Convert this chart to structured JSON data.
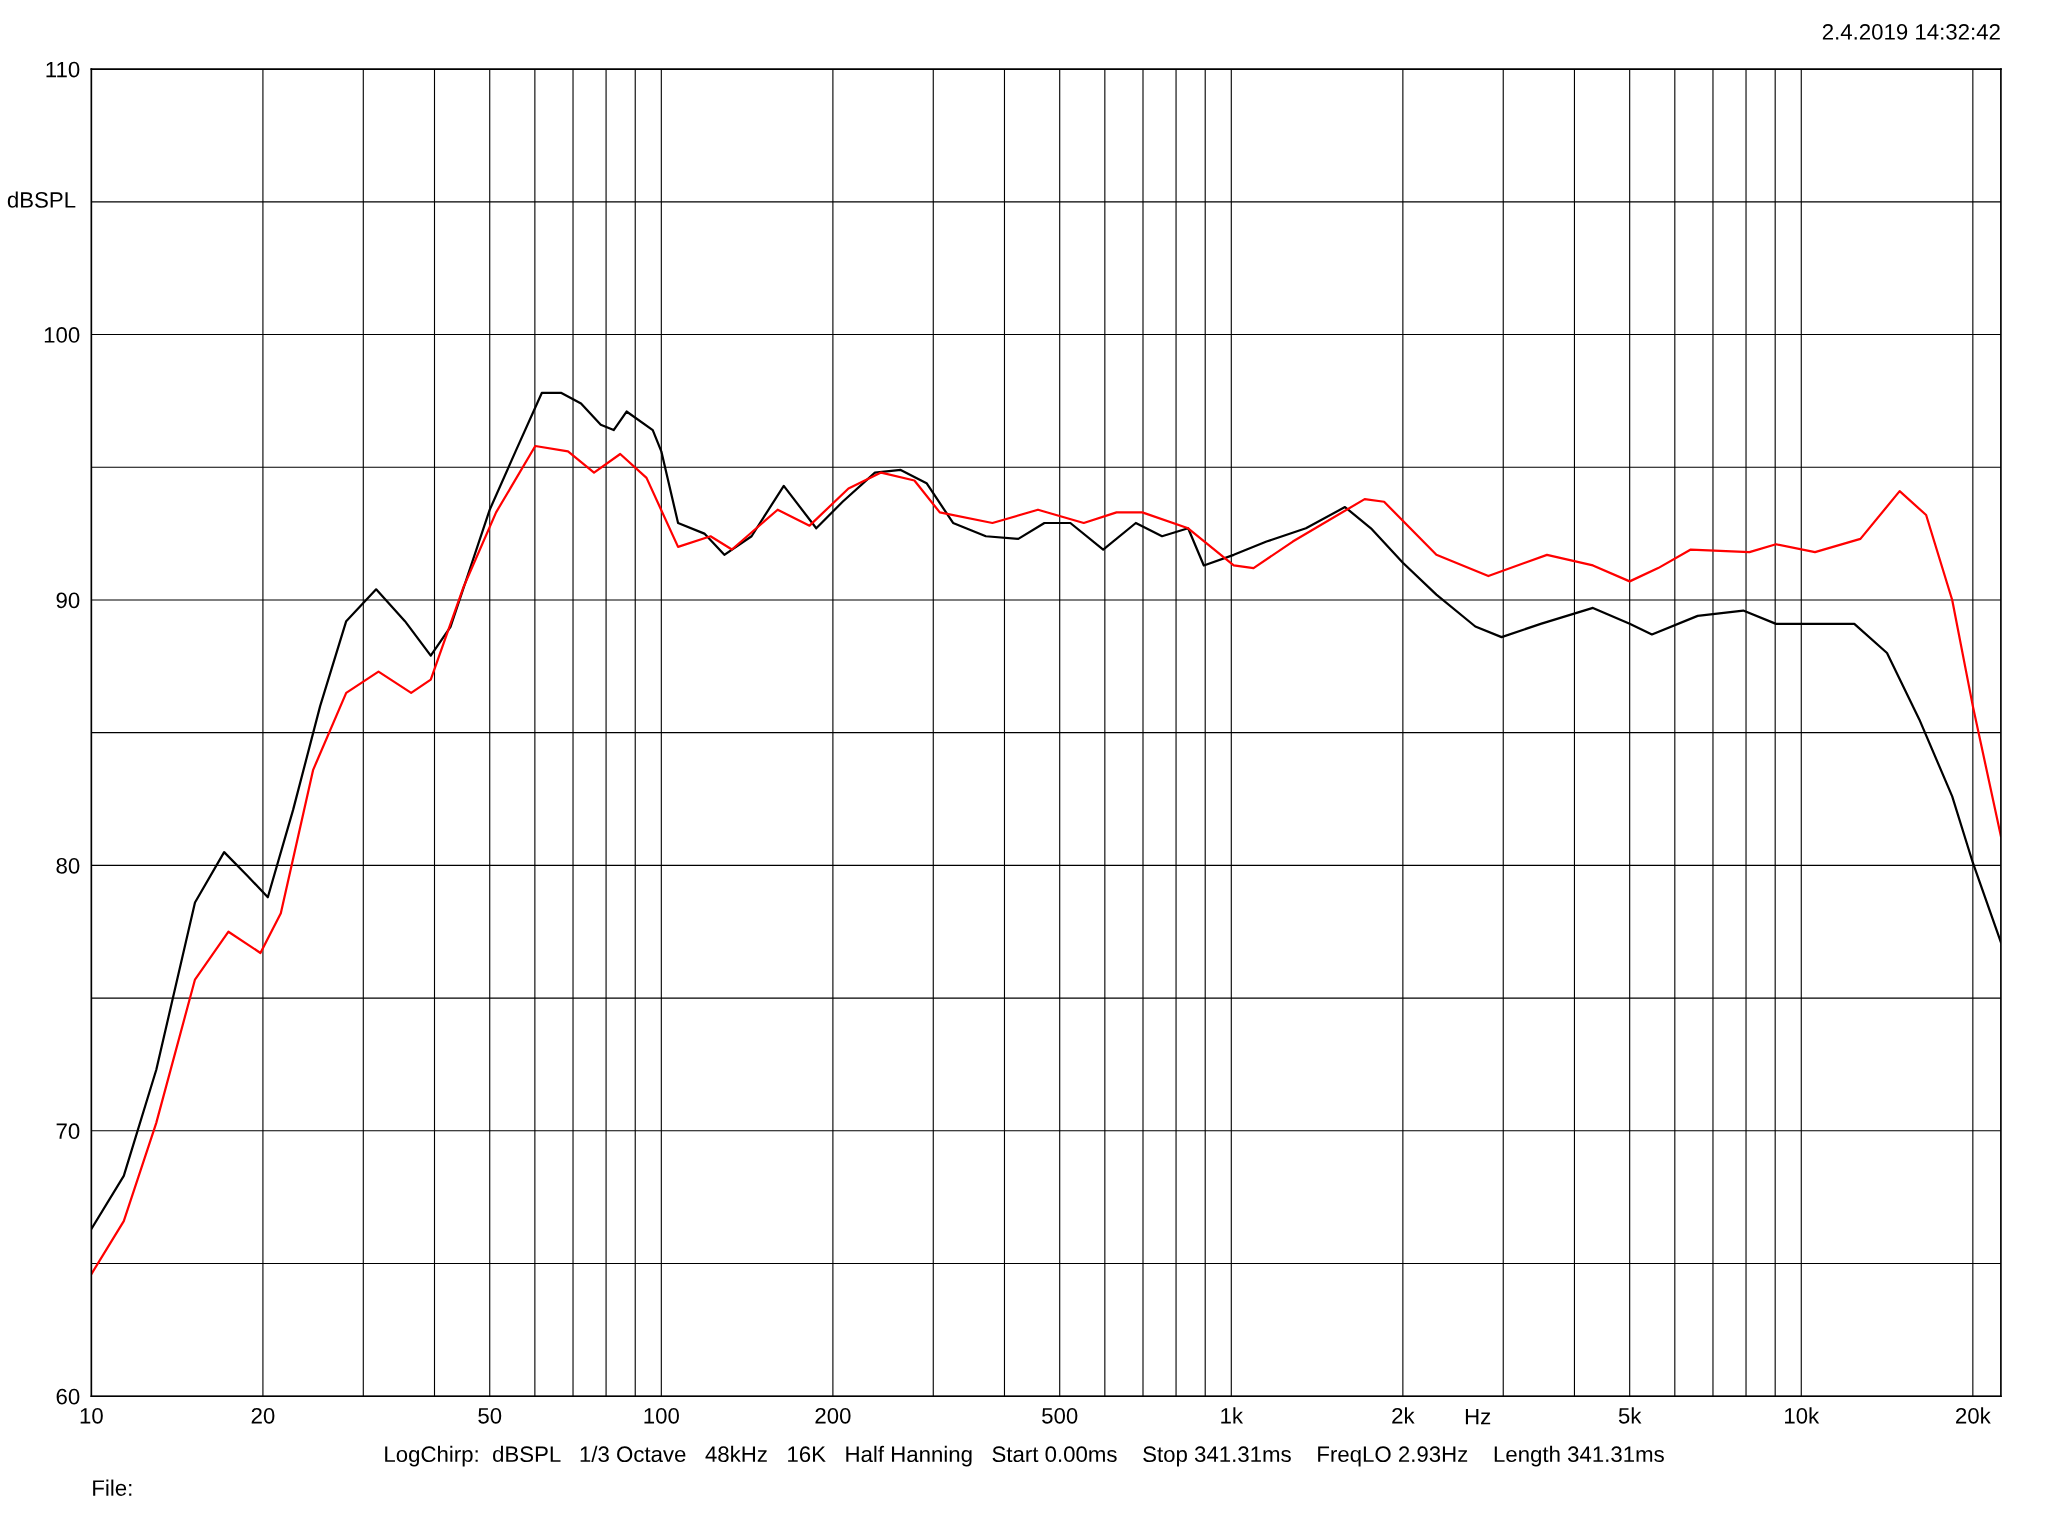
{
  "chart_data": {
    "type": "line",
    "xlabel": "Hz",
    "ylabel": "dBSPL",
    "log": "x",
    "grid": true,
    "xlim": [
      10,
      22400
    ],
    "ylim": [
      60,
      110
    ],
    "xticks": [
      10,
      20,
      {
        "value": 30,
        "label": null
      },
      {
        "value": 40,
        "label": null
      },
      50,
      {
        "value": 60,
        "label": null
      },
      {
        "value": 70,
        "label": null
      },
      {
        "value": 80,
        "label": null
      },
      {
        "value": 90,
        "label": null
      },
      100,
      200,
      {
        "value": 300,
        "label": null
      },
      {
        "value": 400,
        "label": null
      },
      500,
      {
        "value": 600,
        "label": null
      },
      {
        "value": 700,
        "label": null
      },
      {
        "value": 800,
        "label": null
      },
      {
        "value": 900,
        "label": null
      },
      {
        "value": 1000,
        "label": "1k"
      },
      {
        "value": 2000,
        "label": "2k"
      },
      {
        "value": 3000,
        "label": null
      },
      {
        "value": 4000,
        "label": null
      },
      {
        "value": 5000,
        "label": "5k"
      },
      {
        "value": 6000,
        "label": null
      },
      {
        "value": 7000,
        "label": null
      },
      {
        "value": 8000,
        "label": null
      },
      {
        "value": 9000,
        "label": null
      },
      {
        "value": 10000,
        "label": "10k"
      },
      {
        "value": 20000,
        "label": "20k"
      }
    ],
    "yticks": [
      60,
      {
        "value": 65,
        "label": null
      },
      70,
      {
        "value": 75,
        "label": null
      },
      80,
      {
        "value": 85,
        "label": null
      },
      90,
      {
        "value": 95,
        "label": null
      },
      100,
      {
        "value": 105,
        "label": null
      },
      110
    ],
    "annotations": [
      "2.4.2019 14:32:42",
      "LogChirp:  dBSPL   1/3 Octave   48kHz   16K   Half Hanning   Start 0.00ms    Stop 341.31ms    FreqLO 2.93Hz    Length 341.31ms",
      "File:"
    ],
    "series": [
      {
        "color": "#000000",
        "x": [
          10,
          11.4,
          13.0,
          15.2,
          17.1,
          18.8,
          20.4,
          22.6,
          25.2,
          28.0,
          31.6,
          35.5,
          39.4,
          42.7,
          50,
          55.5,
          61.7,
          66.8,
          72.3,
          78.3,
          82.5,
          86.9,
          96.6,
          100,
          107,
          119,
          129,
          144,
          164,
          187,
          208,
          237,
          263,
          292,
          325,
          371,
          423,
          470,
          522,
          596,
          680,
          756,
          840,
          895,
          1010,
          1153,
          1352,
          1583,
          1758,
          2000,
          2290,
          2680,
          2980,
          3490,
          4310,
          5000,
          5470,
          6580,
          7910,
          9030,
          10310,
          12390,
          14140,
          16110,
          18400,
          20000,
          22400
        ],
        "values": [
          66.3,
          68.3,
          72.3,
          78.6,
          80.5,
          79.6,
          78.8,
          82.1,
          86.0,
          89.2,
          90.4,
          89.2,
          87.9,
          89.0,
          93.4,
          95.6,
          97.8,
          97.8,
          97.4,
          96.6,
          96.4,
          97.1,
          96.4,
          95.6,
          92.9,
          92.5,
          91.7,
          92.4,
          94.3,
          92.7,
          93.7,
          94.8,
          94.9,
          94.4,
          92.9,
          92.4,
          92.3,
          92.9,
          92.9,
          91.9,
          92.9,
          92.4,
          92.7,
          91.3,
          91.7,
          92.2,
          92.7,
          93.5,
          92.7,
          91.4,
          90.2,
          89.0,
          88.6,
          89.1,
          89.7,
          89.1,
          88.7,
          89.4,
          89.6,
          89.1,
          89.1,
          89.1,
          88.0,
          85.5,
          82.6,
          80.1,
          77.1
        ]
      },
      {
        "color": "#ff0000",
        "x": [
          10,
          11.4,
          13.0,
          15.2,
          17.4,
          19.8,
          21.5,
          24.5,
          28.0,
          31.9,
          36.4,
          39.4,
          45.0,
          51.3,
          60.1,
          68.6,
          76.2,
          84.7,
          94.2,
          107,
          122,
          133,
          160,
          182,
          213,
          243,
          278,
          308,
          381,
          458,
          551,
          629,
          698,
          840,
          1010,
          1094,
          1282,
          1714,
          1854,
          2290,
          2825,
          3580,
          4310,
          5000,
          5610,
          6400,
          8110,
          9030,
          10570,
          12700,
          14880,
          16560,
          18400,
          20000,
          22400
        ],
        "values": [
          64.6,
          66.6,
          70.3,
          75.7,
          77.5,
          76.7,
          78.2,
          83.6,
          86.5,
          87.3,
          86.5,
          87.0,
          90.5,
          93.3,
          95.8,
          95.6,
          94.8,
          95.5,
          94.6,
          92.0,
          92.4,
          91.9,
          93.4,
          92.8,
          94.2,
          94.8,
          94.5,
          93.3,
          92.9,
          93.4,
          92.9,
          93.3,
          93.3,
          92.7,
          91.3,
          91.2,
          92.2,
          93.8,
          93.7,
          91.7,
          90.9,
          91.7,
          91.3,
          90.7,
          91.2,
          91.9,
          91.8,
          92.1,
          91.8,
          92.3,
          94.1,
          93.2,
          90.0,
          86.0,
          81.1
        ]
      }
    ]
  }
}
